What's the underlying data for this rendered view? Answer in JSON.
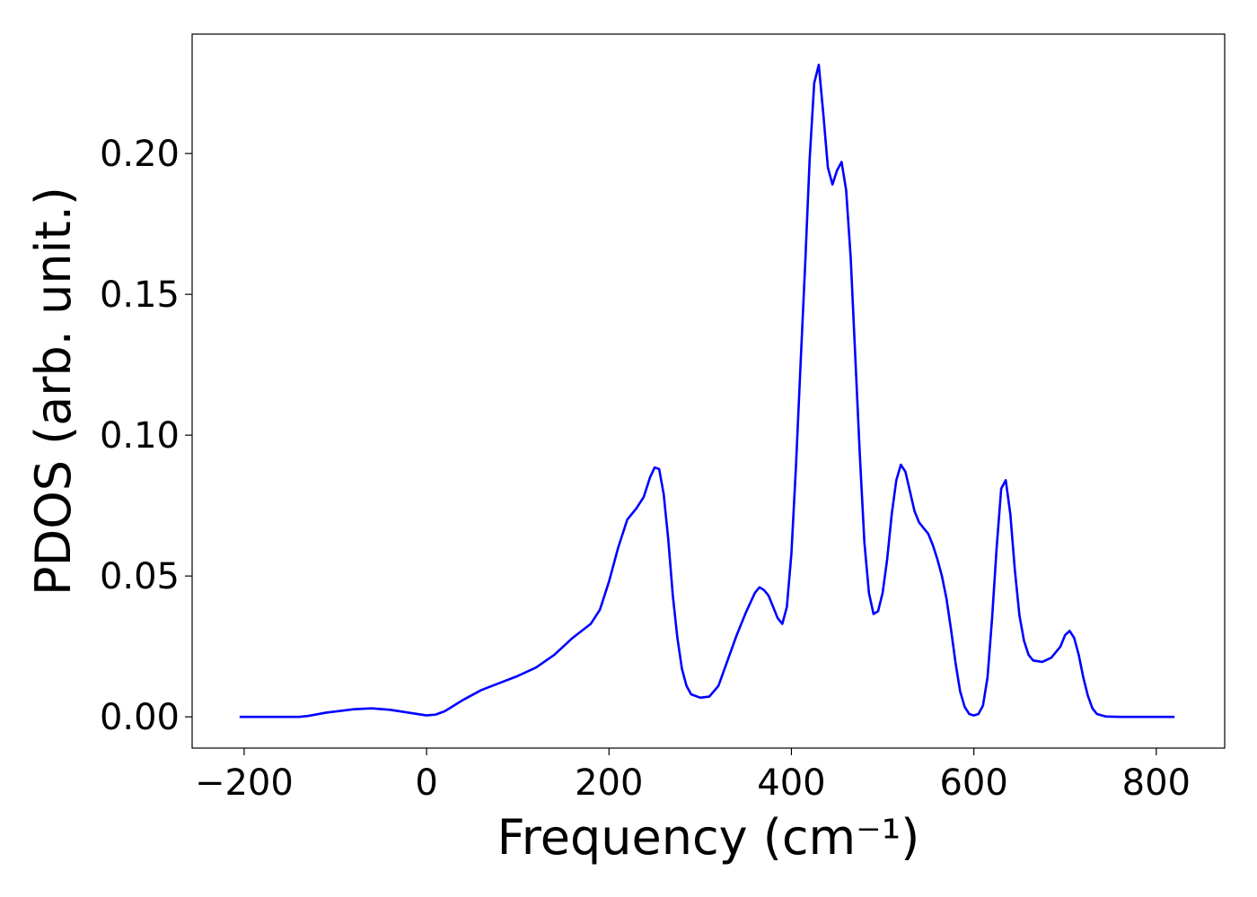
{
  "chart_data": {
    "type": "line",
    "xlabel": "Frequency (cm⁻¹)",
    "ylabel": "PDOS (arb. unit.)",
    "color": "#0000ff",
    "x": [
      -205,
      -140,
      -130,
      -110,
      -80,
      -60,
      -40,
      -20,
      0,
      10,
      20,
      40,
      60,
      80,
      100,
      120,
      140,
      160,
      180,
      190,
      200,
      210,
      220,
      230,
      238,
      245,
      250,
      255,
      260,
      265,
      270,
      275,
      280,
      285,
      290,
      300,
      310,
      320,
      330,
      340,
      350,
      360,
      365,
      370,
      375,
      380,
      385,
      390,
      395,
      400,
      405,
      410,
      415,
      420,
      425,
      430,
      435,
      440,
      445,
      450,
      455,
      460,
      465,
      470,
      475,
      480,
      485,
      490,
      495,
      500,
      505,
      510,
      515,
      520,
      525,
      530,
      535,
      540,
      545,
      550,
      555,
      560,
      565,
      570,
      575,
      580,
      585,
      590,
      595,
      600,
      605,
      610,
      615,
      620,
      625,
      630,
      635,
      640,
      645,
      650,
      655,
      660,
      665,
      675,
      685,
      695,
      700,
      705,
      710,
      715,
      720,
      725,
      730,
      735,
      745,
      760,
      820
    ],
    "values": [
      0,
      0,
      0.0003,
      0.0015,
      0.0027,
      0.003,
      0.0025,
      0.0015,
      0.0005,
      0.0008,
      0.002,
      0.006,
      0.0095,
      0.012,
      0.0145,
      0.0175,
      0.022,
      0.028,
      0.033,
      0.038,
      0.048,
      0.06,
      0.07,
      0.074,
      0.078,
      0.085,
      0.0885,
      0.088,
      0.079,
      0.063,
      0.043,
      0.028,
      0.017,
      0.011,
      0.008,
      0.0068,
      0.0072,
      0.011,
      0.02,
      0.029,
      0.037,
      0.044,
      0.046,
      0.045,
      0.043,
      0.039,
      0.035,
      0.033,
      0.039,
      0.058,
      0.089,
      0.125,
      0.16,
      0.198,
      0.225,
      0.2315,
      0.214,
      0.195,
      0.189,
      0.194,
      0.197,
      0.187,
      0.163,
      0.128,
      0.093,
      0.062,
      0.044,
      0.0365,
      0.0375,
      0.044,
      0.056,
      0.072,
      0.084,
      0.0895,
      0.087,
      0.08,
      0.073,
      0.069,
      0.067,
      0.065,
      0.061,
      0.056,
      0.05,
      0.042,
      0.031,
      0.019,
      0.009,
      0.0035,
      0.001,
      0.0005,
      0.001,
      0.004,
      0.014,
      0.035,
      0.06,
      0.081,
      0.084,
      0.072,
      0.052,
      0.036,
      0.027,
      0.022,
      0.02,
      0.0195,
      0.021,
      0.025,
      0.029,
      0.0305,
      0.028,
      0.022,
      0.014,
      0.0075,
      0.003,
      0.001,
      0.0001,
      0,
      0
    ],
    "xlim": [
      -257,
      875
    ],
    "xticks": [
      {
        "value": -200,
        "label": "−200"
      },
      0,
      200,
      400,
      600,
      800
    ],
    "ylim": [
      -0.0111,
      0.2424
    ],
    "yticks": [
      {
        "value": 0,
        "label": "0.00"
      },
      {
        "value": 0.05,
        "label": "0.05"
      },
      {
        "value": 0.1,
        "label": "0.10"
      },
      {
        "value": 0.15,
        "label": "0.15"
      },
      {
        "value": 0.2,
        "label": "0.20"
      }
    ],
    "grid": false
  }
}
